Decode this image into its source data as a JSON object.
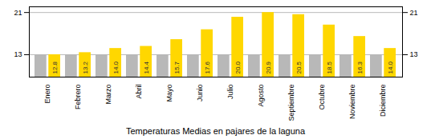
{
  "chart_data": {
    "type": "bar",
    "title": "Temperaturas Medias en pajares de la laguna",
    "categories": [
      "Enero",
      "Febrero",
      "Marzo",
      "Abril",
      "Mayo",
      "Junio",
      "Julio",
      "Agosto",
      "Septiembre",
      "Octubre",
      "Noviembre",
      "Diciembre"
    ],
    "series": [
      {
        "color": "#B8B8B8",
        "values": [
          12.8,
          12.8,
          12.8,
          12.8,
          12.8,
          12.8,
          12.8,
          12.8,
          12.8,
          12.8,
          12.8,
          12.8
        ]
      },
      {
        "color": "#FFD700",
        "values": [
          12.8,
          13.2,
          14.0,
          14.4,
          15.7,
          17.6,
          20.0,
          20.9,
          20.5,
          18.5,
          16.3,
          14.0
        ],
        "value_labels": [
          "12.8",
          "13.2",
          "14.0",
          "14.4",
          "15.7",
          "17.6",
          "20.0",
          "20.9",
          "20.5",
          "18.5",
          "16.3",
          "14.0"
        ],
        "data_labels": true
      }
    ],
    "ylim": [
      8.5,
      22.0
    ],
    "yticks": [
      12.8,
      20.9
    ],
    "y2lim": [
      8.5,
      22.0
    ],
    "y2ticks": [
      12.8,
      20.9
    ],
    "grid": true
  }
}
